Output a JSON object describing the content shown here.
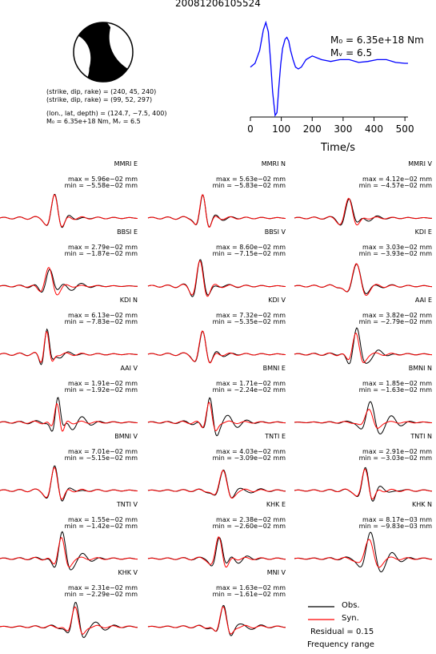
{
  "title": "20081206105524",
  "source": {
    "line1": "(strike, dip, rake) = (240, 45, 240)",
    "line2": "(strike, dip, rake) = (99, 52, 297)",
    "line3": "(lon., lat, depth) = (124.7, −7.5, 400)",
    "line4": "M₀ = 6.35e+18 Nm, Mᵥ = 6.5"
  },
  "moment": {
    "m0": "M₀ = 6.35e+18 Nm",
    "mw": "Mᵥ = 6.5"
  },
  "chart_data": [
    {
      "type": "line",
      "name": "source time function",
      "xlabel": "Time/s",
      "xlim": [
        0,
        510
      ],
      "xticks": [
        0,
        100,
        200,
        300,
        400,
        500
      ],
      "x": [
        0,
        15,
        30,
        42,
        50,
        58,
        65,
        72,
        80,
        86,
        92,
        98,
        104,
        112,
        118,
        124,
        130,
        138,
        146,
        155,
        165,
        180,
        200,
        230,
        260,
        290,
        320,
        350,
        380,
        410,
        440,
        470,
        500,
        510
      ],
      "y": [
        0.52,
        0.56,
        0.7,
        0.92,
        1.0,
        0.9,
        0.6,
        0.25,
        0.0,
        0.03,
        0.3,
        0.55,
        0.72,
        0.82,
        0.84,
        0.8,
        0.7,
        0.6,
        0.52,
        0.5,
        0.52,
        0.6,
        0.64,
        0.6,
        0.58,
        0.6,
        0.6,
        0.57,
        0.58,
        0.6,
        0.6,
        0.57,
        0.56,
        0.56
      ],
      "color": "#0000ff"
    },
    {
      "type": "line",
      "legend": {
        "obs": "Obs.",
        "syn": "Syn."
      },
      "obs_color": "#000000",
      "syn_color": "#ff0000",
      "residual": "Residual = 0.15",
      "frequency": "Frequency range",
      "panels": [
        {
          "label": "MMRI E",
          "max": "max = 5.96e−02 mm",
          "min": "min = −5.58e−02 mm",
          "peak": 0.4,
          "w": 0.04,
          "amp": 1.0,
          "misfit": 0.15
        },
        {
          "label": "MMRI N",
          "max": "max = 5.63e−02 mm",
          "min": "min = −5.83e−02 mm",
          "peak": 0.4,
          "w": 0.035,
          "amp": 1.0,
          "misfit": 0.12
        },
        {
          "label": "MMRI V",
          "max": "max = 4.12e−02 mm",
          "min": "min = −4.57e−02 mm",
          "peak": 0.4,
          "w": 0.045,
          "amp": 0.85,
          "misfit": 0.2
        },
        {
          "label": "BBSI E",
          "max": "max = 2.79e−02 mm",
          "min": "min = −1.87e−02 mm",
          "peak": 0.36,
          "w": 0.045,
          "amp": 0.8,
          "misfit": 0.45
        },
        {
          "label": "BBSI V",
          "max": "max = 8.60e−02 mm",
          "min": "min = −7.15e−02 mm",
          "peak": 0.38,
          "w": 0.04,
          "amp": 1.0,
          "misfit": 0.15
        },
        {
          "label": "KDI E",
          "max": "max = 3.03e−02 mm",
          "min": "min = −3.93e−02 mm",
          "peak": 0.45,
          "w": 0.05,
          "amp": 1.0,
          "misfit": 0.15
        },
        {
          "label": "KDI N",
          "max": "max = 6.13e−02 mm",
          "min": "min = −7.83e−02 mm",
          "peak": 0.34,
          "w": 0.03,
          "amp": 1.0,
          "misfit": 0.2
        },
        {
          "label": "KDI V",
          "max": "max = 7.32e−02 mm",
          "min": "min = −5.35e−02 mm",
          "peak": 0.4,
          "w": 0.04,
          "amp": 1.0,
          "misfit": 0.15
        },
        {
          "label": "AAI E",
          "max": "max = 3.82e−02 mm",
          "min": "min = −2.79e−02 mm",
          "peak": 0.45,
          "w": 0.04,
          "amp": 1.0,
          "misfit": 0.4
        },
        {
          "label": "AAI V",
          "max": "max = 1.91e−02 mm",
          "min": "min = −1.92e−02 mm",
          "peak": 0.42,
          "w": 0.03,
          "amp": 1.0,
          "misfit": 0.55
        },
        {
          "label": "BMNI E",
          "max": "max = 1.71e−02 mm",
          "min": "min = −2.24e−02 mm",
          "peak": 0.45,
          "w": 0.035,
          "amp": 1.0,
          "misfit": 0.6
        },
        {
          "label": "BMNI N",
          "max": "max = 1.85e−02 mm",
          "min": "min = −1.63e−02 mm",
          "peak": 0.55,
          "w": 0.045,
          "amp": 0.7,
          "misfit": 0.6
        },
        {
          "label": "BMNI V",
          "max": "max = 7.01e−02 mm",
          "min": "min = −5.15e−02 mm",
          "peak": 0.4,
          "w": 0.04,
          "amp": 1.0,
          "misfit": 0.2
        },
        {
          "label": "TNTI E",
          "max": "max = 4.03e−02 mm",
          "min": "min = −3.09e−02 mm",
          "peak": 0.55,
          "w": 0.045,
          "amp": 1.0,
          "misfit": 0.35
        },
        {
          "label": "TNTI N",
          "max": "max = 2.91e−02 mm",
          "min": "min = −3.03e−02 mm",
          "peak": 0.52,
          "w": 0.04,
          "amp": 1.0,
          "misfit": 0.35
        },
        {
          "label": "TNTI V",
          "max": "max = 1.55e−02 mm",
          "min": "min = −1.42e−02 mm",
          "peak": 0.45,
          "w": 0.04,
          "amp": 1.0,
          "misfit": 0.4
        },
        {
          "label": "KHK E",
          "max": "max = 2.38e−02 mm",
          "min": "min = −2.60e−02 mm",
          "peak": 0.52,
          "w": 0.04,
          "amp": 1.0,
          "misfit": 0.3
        },
        {
          "label": "KHK N",
          "max": "max = 8.17e−03 mm",
          "min": "min = −9.83e−03 mm",
          "peak": 0.55,
          "w": 0.05,
          "amp": 1.0,
          "misfit": 0.5
        },
        {
          "label": "KHK V",
          "max": "max = 2.31e−02 mm",
          "min": "min = −2.29e−02 mm",
          "peak": 0.55,
          "w": 0.04,
          "amp": 1.0,
          "misfit": 0.4
        },
        {
          "label": "MNI V",
          "max": "max = 1.63e−02 mm",
          "min": "min = −1.61e−02 mm",
          "peak": 0.55,
          "w": 0.04,
          "amp": 1.0,
          "misfit": 0.35
        }
      ]
    }
  ]
}
